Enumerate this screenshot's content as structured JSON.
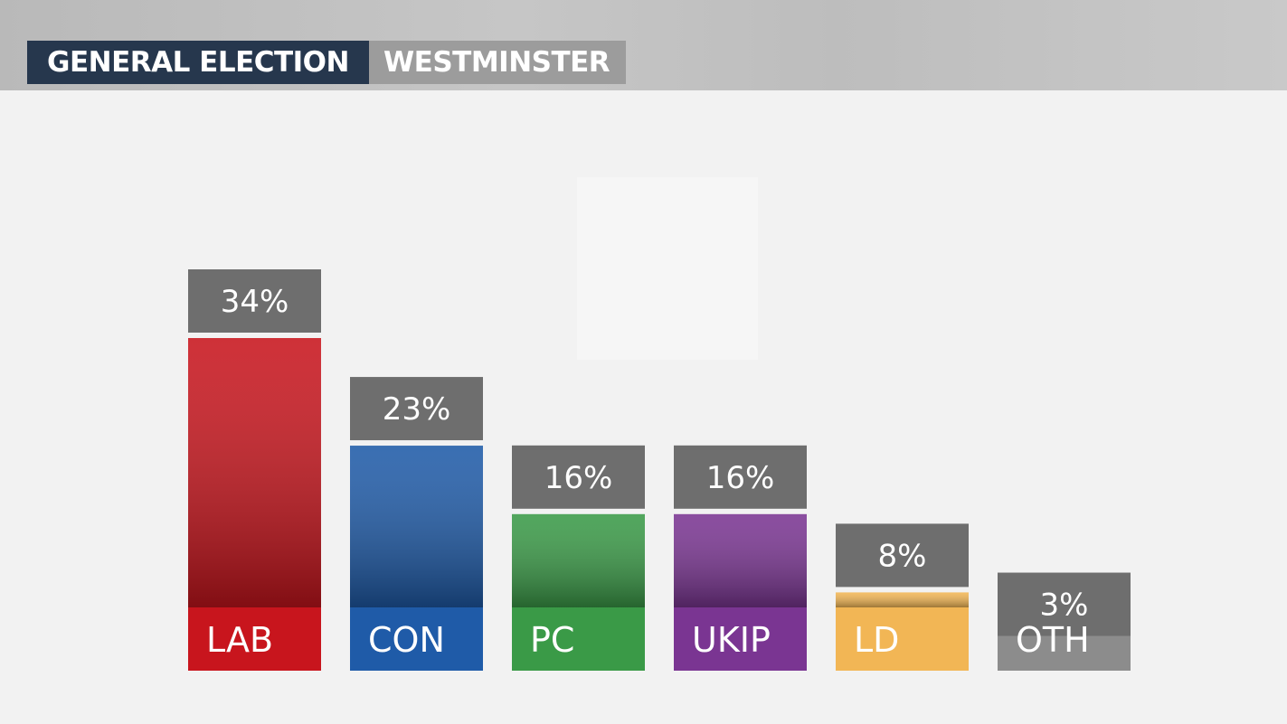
{
  "header": {
    "left_label": "GENERAL ELECTION",
    "right_label": "WESTMINSTER"
  },
  "chart_data": {
    "type": "bar",
    "title": "",
    "xlabel": "",
    "ylabel": "",
    "ylim": [
      0,
      34
    ],
    "grid": false,
    "legend": "none",
    "categories": [
      "LAB",
      "CON",
      "PC",
      "UKIP",
      "LD",
      "OTH"
    ],
    "values": [
      34,
      23,
      16,
      16,
      8,
      3
    ],
    "value_labels": [
      "34%",
      "23%",
      "16%",
      "16%",
      "8%",
      "3%"
    ],
    "colors": [
      "#c8151d",
      "#1f5ba8",
      "#3a9a47",
      "#7a3592",
      "#f2b655",
      "#8c8c8c"
    ],
    "label_box_color": "#6e6e6e"
  }
}
